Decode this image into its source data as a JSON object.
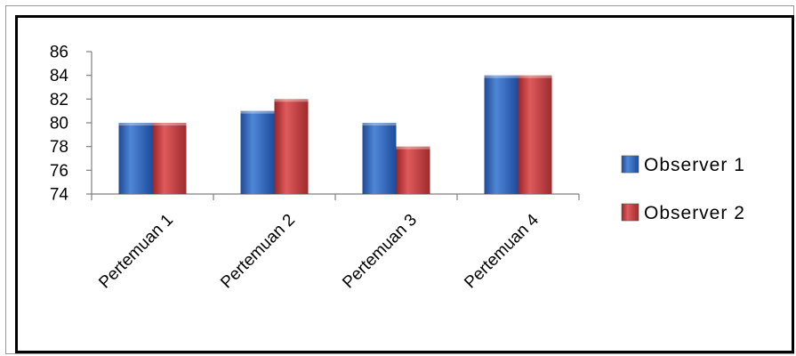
{
  "chart_data": {
    "type": "bar",
    "title": "",
    "xlabel": "",
    "ylabel": "",
    "categories": [
      "Pertemuan 1",
      "Pertemuan 2",
      "Pertemuan 3",
      "Pertemuan 4"
    ],
    "series": [
      {
        "name": "Observer 1",
        "values": [
          80,
          81,
          80,
          84
        ],
        "color": "#2f5fb5"
      },
      {
        "name": "Observer 2",
        "values": [
          80,
          82,
          78,
          84
        ],
        "color": "#c0393b"
      }
    ],
    "ylim": [
      74,
      86
    ],
    "yticks": [
      "74",
      "76",
      "78",
      "80",
      "82",
      "84",
      "86"
    ],
    "grid": false,
    "legend_position": "right"
  }
}
